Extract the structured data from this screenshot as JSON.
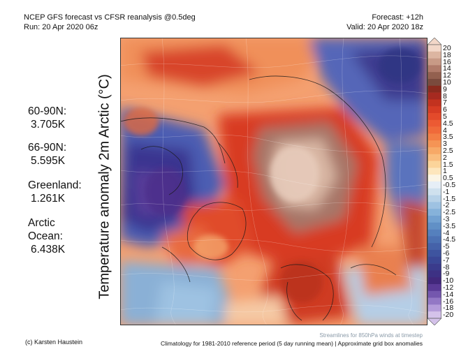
{
  "header": {
    "title": "NCEP GFS forecast vs CFSR reanalysis @0.5deg",
    "run": "Run: 20 Apr 2020 06z",
    "forecast": "Forecast: +12h",
    "valid": "Valid: 20 Apr 2020 18z"
  },
  "y_label": "Temperature anomaly 2m Arctic (°C)",
  "stats": [
    {
      "label": "60-90N:",
      "value": "3.705K"
    },
    {
      "label": "66-90N:",
      "value": "5.595K"
    },
    {
      "label": "Greenland:",
      "value": "1.261K"
    },
    {
      "label": "Arctic",
      "label2": "Ocean:",
      "value": "6.438K"
    }
  ],
  "colorbar": {
    "labels": [
      "20",
      "18",
      "16",
      "14",
      "12",
      "10",
      "9",
      "8",
      "7",
      "6",
      "5",
      "4.5",
      "4",
      "3.5",
      "3",
      "2.5",
      "2",
      "1.5",
      "1",
      "0.5",
      "-0.5",
      "-1",
      "-1.5",
      "-2",
      "-2.5",
      "-3",
      "-3.5",
      "-4",
      "-4.5",
      "-5",
      "-6",
      "-7",
      "-8",
      "-9",
      "-10",
      "-12",
      "-14",
      "-16",
      "-18",
      "-20"
    ],
    "colors": [
      "#f2d7c8",
      "#dcb5a1",
      "#c89a86",
      "#b07b6a",
      "#93604f",
      "#7a4a3d",
      "#8a2a1e",
      "#a62a20",
      "#c2321f",
      "#d63c24",
      "#e34a2b",
      "#ec5a33",
      "#f06a3a",
      "#f37e45",
      "#f59455",
      "#f7a967",
      "#f9bd7e",
      "#fbd49a",
      "#fde6bd",
      "#fbf5e6",
      "#e6eef6",
      "#cfe1ee",
      "#b7d2e8",
      "#9ec2e2",
      "#86b2da",
      "#72a1d1",
      "#6190c6",
      "#5580bd",
      "#4c71b3",
      "#4562a9",
      "#3e549f",
      "#3a4796",
      "#3a3b8c",
      "#3d3184",
      "#42287c",
      "#5a3a96",
      "#7457ae",
      "#9378c5",
      "#b49cda",
      "#d4c2ea"
    ]
  },
  "footer": {
    "credit": "(c) Karsten Haustein",
    "climatology": "Climatology for 1981-2010 reference period (5 day running mean) | Approximate grid box anomalies",
    "streamlines": "Streamlines for 850hPa winds at timestep"
  }
}
